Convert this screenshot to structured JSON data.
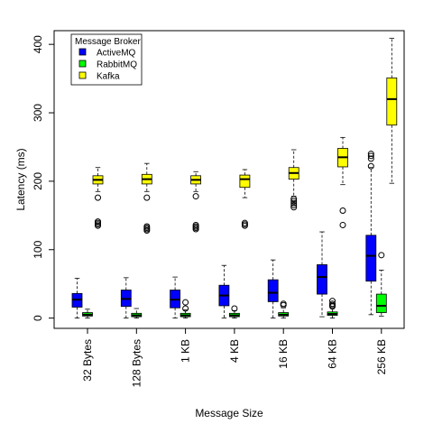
{
  "chart_data": {
    "type": "boxplot",
    "xlabel": "Message Size",
    "ylabel": "Latency (ms)",
    "ylim": [
      -15,
      420
    ],
    "yticks": [
      0,
      100,
      200,
      300,
      400
    ],
    "categories": [
      "32 Bytes",
      "128 Bytes",
      "1 KB",
      "4 KB",
      "16 KB",
      "64 KB",
      "256 KB"
    ],
    "legend": {
      "title": "Message Broker",
      "position": "top-left",
      "entries": [
        "ActiveMQ",
        "RabbitMQ",
        "Kafka"
      ]
    },
    "series": [
      {
        "name": "ActiveMQ",
        "color": "#0000ff",
        "boxes": [
          {
            "whisker_low": 0,
            "q1": 16,
            "median": 27,
            "q3": 36,
            "whisker_high": 58,
            "outliers": []
          },
          {
            "whisker_low": 0,
            "q1": 17,
            "median": 28,
            "q3": 41,
            "whisker_high": 59,
            "outliers": []
          },
          {
            "whisker_low": 0,
            "q1": 15,
            "median": 27,
            "q3": 41,
            "whisker_high": 60,
            "outliers": []
          },
          {
            "whisker_low": 0,
            "q1": 18,
            "median": 33,
            "q3": 48,
            "whisker_high": 77,
            "outliers": []
          },
          {
            "whisker_low": 0,
            "q1": 24,
            "median": 37,
            "q3": 56,
            "whisker_high": 85,
            "outliers": []
          },
          {
            "whisker_low": 2,
            "q1": 35,
            "median": 60,
            "q3": 78,
            "whisker_high": 126,
            "outliers": []
          },
          {
            "whisker_low": 5,
            "q1": 54,
            "median": 91,
            "q3": 121,
            "whisker_high": 220,
            "outliers": [
              222,
              233,
              237,
              240
            ]
          }
        ]
      },
      {
        "name": "RabbitMQ",
        "color": "#00ff00",
        "boxes": [
          {
            "whisker_low": 0,
            "q1": 3,
            "median": 5,
            "q3": 8,
            "whisker_high": 13,
            "outliers": []
          },
          {
            "whisker_low": 0,
            "q1": 2,
            "median": 4,
            "q3": 7,
            "whisker_high": 14,
            "outliers": []
          },
          {
            "whisker_low": 0,
            "q1": 2,
            "median": 4,
            "q3": 7,
            "whisker_high": 12,
            "outliers": [
              14,
              23
            ]
          },
          {
            "whisker_low": 0,
            "q1": 2,
            "median": 4,
            "q3": 7,
            "whisker_high": 11,
            "outliers": [
              14
            ]
          },
          {
            "whisker_low": 0,
            "q1": 3,
            "median": 5,
            "q3": 8,
            "whisker_high": 15,
            "outliers": [
              19,
              21
            ]
          },
          {
            "whisker_low": 0,
            "q1": 4,
            "median": 6,
            "q3": 9,
            "whisker_high": 15,
            "outliers": [
              17,
              19,
              21,
              25
            ]
          },
          {
            "whisker_low": 3,
            "q1": 8,
            "median": 18,
            "q3": 35,
            "whisker_high": 70,
            "outliers": [
              92
            ]
          }
        ]
      },
      {
        "name": "Kafka",
        "color": "#ffff00",
        "boxes": [
          {
            "whisker_low": 185,
            "q1": 196,
            "median": 202,
            "q3": 208,
            "whisker_high": 220,
            "outliers": [
              135,
              137,
              139,
              141,
              176
            ]
          },
          {
            "whisker_low": 185,
            "q1": 196,
            "median": 203,
            "q3": 210,
            "whisker_high": 226,
            "outliers": [
              128,
              130,
              132,
              134,
              176
            ]
          },
          {
            "whisker_low": 185,
            "q1": 196,
            "median": 202,
            "q3": 208,
            "whisker_high": 214,
            "outliers": [
              130,
              132,
              134,
              136,
              178
            ]
          },
          {
            "whisker_low": 176,
            "q1": 191,
            "median": 203,
            "q3": 209,
            "whisker_high": 217,
            "outliers": [
              135,
              137,
              139
            ]
          },
          {
            "whisker_low": 178,
            "q1": 203,
            "median": 212,
            "q3": 220,
            "whisker_high": 246,
            "outliers": [
              162,
              165,
              168,
              171,
              174
            ]
          },
          {
            "whisker_low": 195,
            "q1": 221,
            "median": 235,
            "q3": 248,
            "whisker_high": 264,
            "outliers": [
              136,
              157
            ]
          },
          {
            "whisker_low": 197,
            "q1": 282,
            "median": 320,
            "q3": 351,
            "whisker_high": 409,
            "outliers": []
          }
        ]
      }
    ]
  }
}
